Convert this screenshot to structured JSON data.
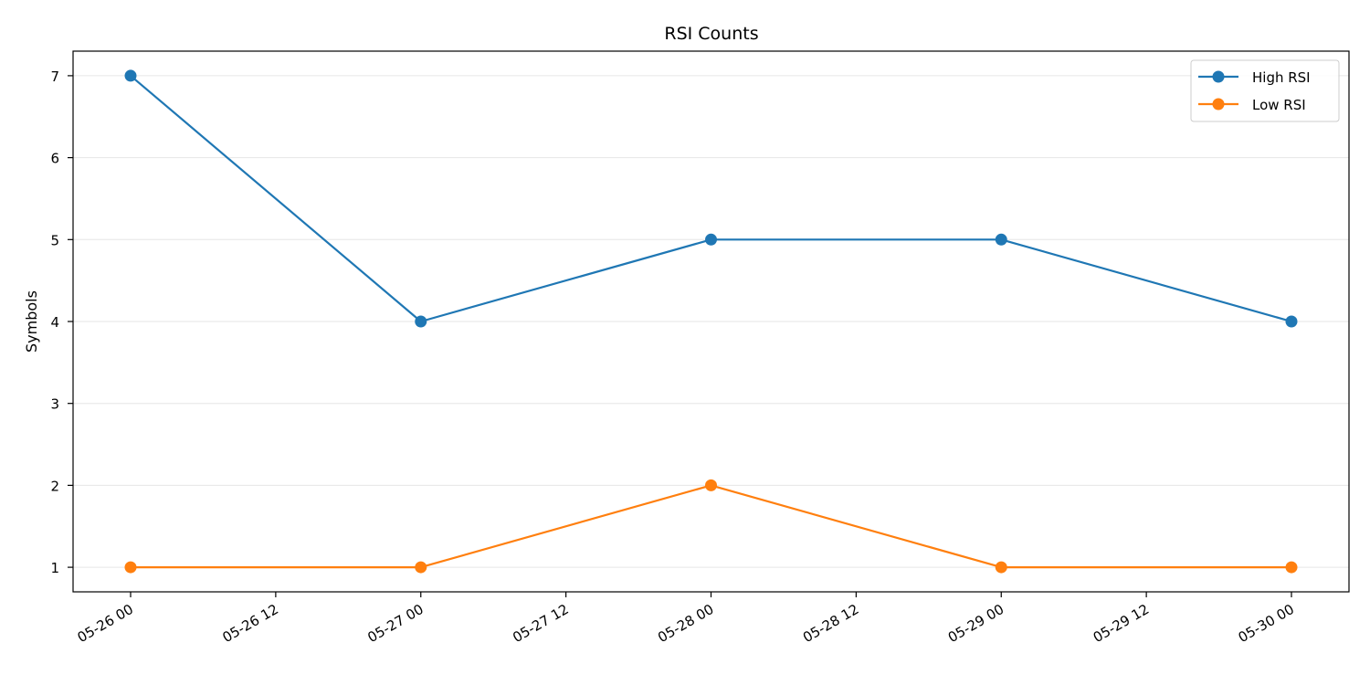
{
  "chart_data": {
    "type": "line",
    "title": "RSI Counts",
    "xlabel": "",
    "ylabel": "Symbols",
    "x": [
      "05-26 00",
      "05-27 00",
      "05-28 00",
      "05-29 00",
      "05-30 00"
    ],
    "x_ticks": [
      "05-26 00",
      "05-26 12",
      "05-27 00",
      "05-27 12",
      "05-28 00",
      "05-28 12",
      "05-29 00",
      "05-29 12",
      "05-30 00"
    ],
    "y_ticks": [
      1,
      2,
      3,
      4,
      5,
      6,
      7
    ],
    "ylim": [
      0.7,
      7.3
    ],
    "grid": "horizontal",
    "legend_position": "top-right",
    "series": [
      {
        "name": "High RSI",
        "color": "#1f77b4",
        "values": [
          7,
          4,
          5,
          5,
          4
        ]
      },
      {
        "name": "Low RSI",
        "color": "#ff7f0e",
        "values": [
          1,
          1,
          2,
          1,
          1
        ]
      }
    ]
  }
}
